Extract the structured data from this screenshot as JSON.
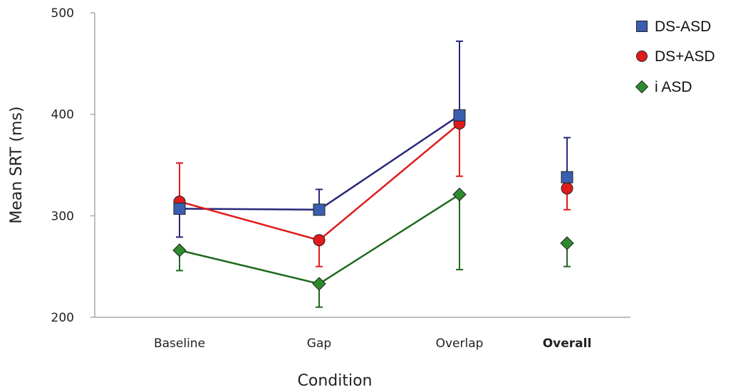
{
  "chart_data": {
    "type": "line",
    "xlabel": "Condition",
    "ylabel": "Mean SRT (ms)",
    "ylim": [
      200,
      500
    ],
    "yticks": [
      200,
      300,
      400,
      500
    ],
    "categories": [
      "Baseline",
      "Gap",
      "Overlap",
      "Overall"
    ],
    "bold_categories": [
      "Overall"
    ],
    "connect_categories": [
      "Baseline",
      "Gap",
      "Overlap"
    ],
    "grid": false,
    "legend": "top-right",
    "series": [
      {
        "name": "DS-ASD",
        "marker": "square",
        "color": "#3a5fb0",
        "line_color": "#28287a",
        "values": [
          307,
          306,
          399,
          338
        ],
        "error_low": [
          279,
          306,
          399,
          338
        ],
        "error_high": [
          307,
          326,
          472,
          377
        ]
      },
      {
        "name": "DS+ASD",
        "marker": "circle",
        "color": "#e01b1b",
        "line_color": "#e01b1b",
        "values": [
          314,
          276,
          391,
          327
        ],
        "error_low": [
          314,
          250,
          339,
          306
        ],
        "error_high": [
          352,
          276,
          391,
          327
        ]
      },
      {
        "name": "i ASD",
        "marker": "diamond",
        "color": "#2e8a2e",
        "line_color": "#1e6a1e",
        "values": [
          266,
          233,
          321,
          273
        ],
        "error_low": [
          246,
          210,
          247,
          250
        ],
        "error_high": [
          266,
          233,
          321,
          273
        ]
      }
    ]
  }
}
